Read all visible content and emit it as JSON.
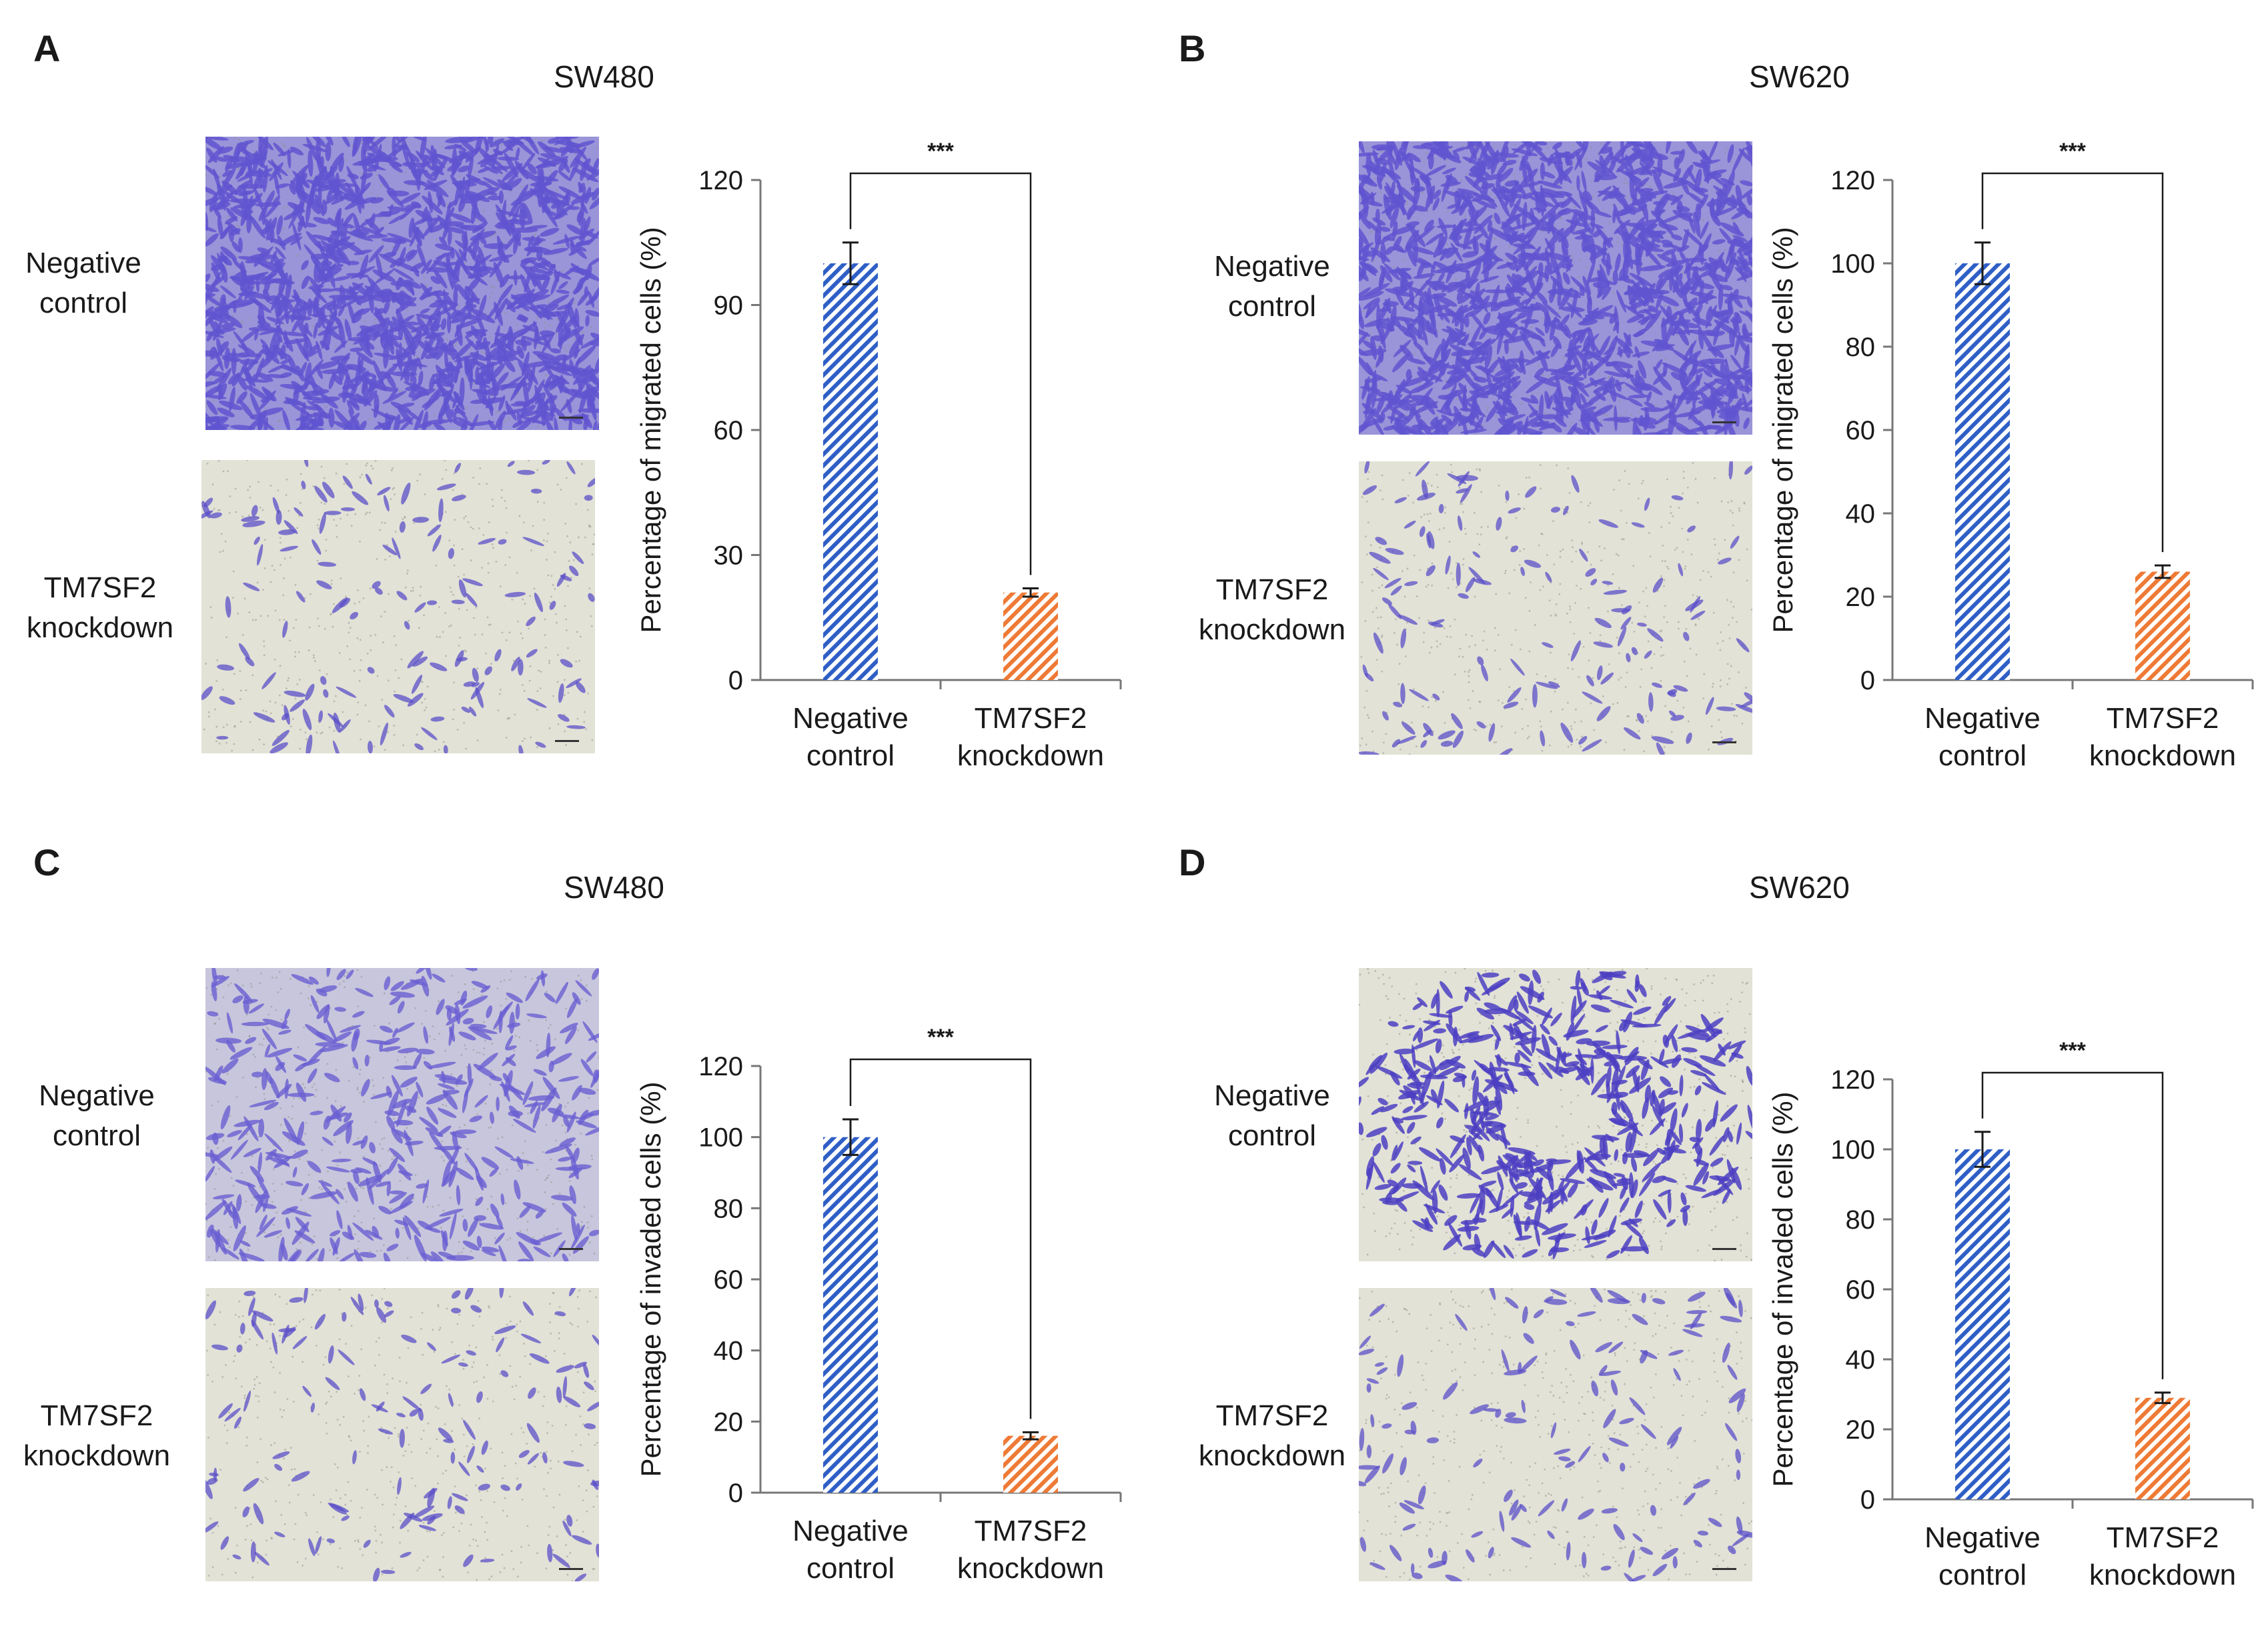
{
  "colors": {
    "negative_bar": "#2f5fc6",
    "knockdown_bar": "#ee7a36",
    "axis": "#777777",
    "stain_dense": "#6055d0",
    "stain_sparse": "#5b4fc8",
    "membrane": "#e4e4d8"
  },
  "panels": [
    {
      "letter": "A",
      "cell_line": "SW480",
      "row_labels": [
        "Negative\ncontrol",
        "TM7SF2\nknockdown"
      ],
      "chart_data": {
        "type": "bar",
        "categories": [
          "Negative\ncontrol",
          "TM7SF2\nknockdown"
        ],
        "values": [
          100,
          21
        ],
        "errors": [
          5,
          1
        ],
        "ylabel": "Percentage of migrated cells (%)",
        "ylim": [
          0,
          120
        ],
        "yticks": [
          0,
          30,
          60,
          90,
          120
        ],
        "significance": "***"
      }
    },
    {
      "letter": "B",
      "cell_line": "SW620",
      "row_labels": [
        "Negative\ncontrol",
        "TM7SF2\nknockdown"
      ],
      "chart_data": {
        "type": "bar",
        "categories": [
          "Negative\ncontrol",
          "TM7SF2\nknockdown"
        ],
        "values": [
          100,
          26
        ],
        "errors": [
          5,
          1.5
        ],
        "ylabel": "Percentage of migrated cells (%)",
        "ylim": [
          0,
          120
        ],
        "yticks": [
          0,
          20,
          40,
          60,
          80,
          100,
          120
        ],
        "significance": "***"
      }
    },
    {
      "letter": "C",
      "cell_line": "SW480",
      "row_labels": [
        "Negative\ncontrol",
        "TM7SF2\nknockdown"
      ],
      "chart_data": {
        "type": "bar",
        "categories": [
          "Negative\ncontrol",
          "TM7SF2\nknockdown"
        ],
        "values": [
          100,
          16
        ],
        "errors": [
          5,
          1
        ],
        "ylabel": "Percentage of invaded cells (%)",
        "ylim": [
          0,
          120
        ],
        "yticks": [
          0,
          20,
          40,
          60,
          80,
          100,
          120
        ],
        "significance": "***"
      }
    },
    {
      "letter": "D",
      "cell_line": "SW620",
      "row_labels": [
        "Negative\ncontrol",
        "TM7SF2\nknockdown"
      ],
      "chart_data": {
        "type": "bar",
        "categories": [
          "Negative\ncontrol",
          "TM7SF2\nknockdown"
        ],
        "values": [
          100,
          29
        ],
        "errors": [
          5,
          1.5
        ],
        "ylabel": "Percentage of invaded cells (%)",
        "ylim": [
          0,
          120
        ],
        "yticks": [
          0,
          20,
          40,
          60,
          80,
          100,
          120
        ],
        "significance": "***"
      }
    }
  ]
}
